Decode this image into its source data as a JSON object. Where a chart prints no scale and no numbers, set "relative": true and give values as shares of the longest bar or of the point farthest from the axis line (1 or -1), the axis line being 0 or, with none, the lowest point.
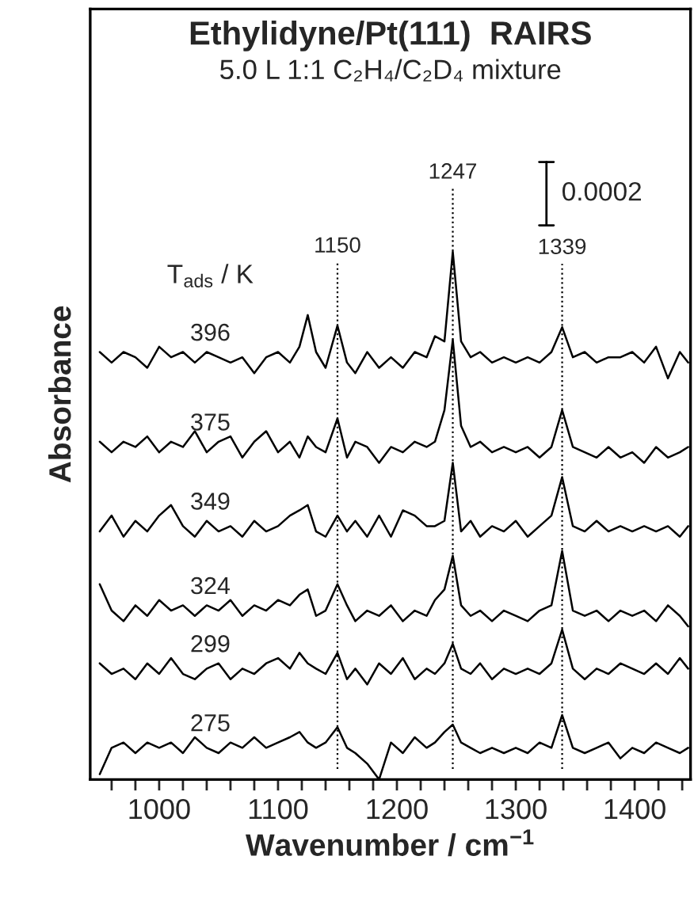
{
  "chart_data": {
    "type": "line",
    "relative": true,
    "title": "Ethylidyne/Pt(111)  RAIRS",
    "subtitle": "5.0 L 1:1 C₂H₄/C₂D₄ mixture",
    "xlabel": "Wavenumber / cm$^{−1}$",
    "ylabel": "Absorbance",
    "legend_title": "T$_{ads}$ / K",
    "annotations": [
      "0.0002"
    ],
    "xlim": [
      942,
      1447
    ],
    "xticks": [
      {
        "value": 960,
        "label": null
      },
      {
        "value": 980,
        "label": null
      },
      1000,
      {
        "value": 1020,
        "label": null
      },
      {
        "value": 1040,
        "label": null
      },
      {
        "value": 1060,
        "label": null
      },
      {
        "value": 1080,
        "label": null
      },
      1100,
      {
        "value": 1120,
        "label": null
      },
      {
        "value": 1140,
        "label": null
      },
      {
        "value": 1160,
        "label": null
      },
      {
        "value": 1180,
        "label": null
      },
      1200,
      {
        "value": 1220,
        "label": null
      },
      {
        "value": 1240,
        "label": null
      },
      {
        "value": 1260,
        "label": null
      },
      {
        "value": 1280,
        "label": null
      },
      1300,
      {
        "value": 1320,
        "label": null
      },
      {
        "value": 1340,
        "label": null
      },
      {
        "value": 1360,
        "label": null
      },
      {
        "value": 1380,
        "label": null
      },
      1400,
      {
        "value": 1420,
        "label": null
      },
      {
        "value": 1440,
        "label": null
      }
    ],
    "tick_labels": "x",
    "grid": false,
    "legend": false,
    "line_style": "solid",
    "marker": "none",
    "ref_lines": [
      {
        "axis": "x",
        "value": 1150,
        "label": "1150",
        "line_style": "dotted"
      },
      {
        "axis": "x",
        "value": 1247,
        "label": "1247",
        "line_style": "dotted"
      },
      {
        "axis": "x",
        "value": 1339,
        "label": "1339",
        "line_style": "dotted"
      }
    ],
    "x": [
      950,
      960,
      970,
      980,
      990,
      1000,
      1010,
      1020,
      1030,
      1040,
      1050,
      1060,
      1070,
      1080,
      1090,
      1100,
      1110,
      1118,
      1125,
      1132,
      1140,
      1150,
      1158,
      1165,
      1175,
      1185,
      1195,
      1205,
      1215,
      1225,
      1232,
      1240,
      1247,
      1254,
      1262,
      1270,
      1280,
      1290,
      1300,
      1310,
      1320,
      1330,
      1339,
      1348,
      1358,
      1368,
      1378,
      1388,
      1398,
      1408,
      1418,
      1428,
      1438,
      1445
    ],
    "series": [
      {
        "name": "396",
        "color": "#000000",
        "values": [
          0.81,
          0.79,
          0.81,
          0.8,
          0.78,
          0.82,
          0.8,
          0.81,
          0.79,
          0.81,
          0.8,
          0.79,
          0.8,
          0.77,
          0.8,
          0.81,
          0.79,
          0.82,
          0.88,
          0.81,
          0.78,
          0.86,
          0.79,
          0.77,
          0.81,
          0.78,
          0.8,
          0.78,
          0.81,
          0.8,
          0.84,
          0.83,
          1.0,
          0.83,
          0.8,
          0.81,
          0.79,
          0.8,
          0.79,
          0.8,
          0.79,
          0.81,
          0.857,
          0.8,
          0.81,
          0.79,
          0.8,
          0.8,
          0.81,
          0.79,
          0.82,
          0.76,
          0.81,
          0.79
        ]
      },
      {
        "name": "375",
        "color": "#000000",
        "values": [
          0.64,
          0.62,
          0.64,
          0.63,
          0.65,
          0.62,
          0.64,
          0.63,
          0.66,
          0.62,
          0.64,
          0.65,
          0.61,
          0.64,
          0.66,
          0.62,
          0.64,
          0.61,
          0.65,
          0.63,
          0.62,
          0.684,
          0.61,
          0.64,
          0.63,
          0.6,
          0.63,
          0.62,
          0.64,
          0.63,
          0.64,
          0.7,
          0.833,
          0.67,
          0.63,
          0.64,
          0.62,
          0.63,
          0.62,
          0.63,
          0.61,
          0.63,
          0.7,
          0.63,
          0.62,
          0.61,
          0.63,
          0.61,
          0.62,
          0.6,
          0.63,
          0.61,
          0.62,
          0.63
        ]
      },
      {
        "name": "349",
        "color": "#000000",
        "values": [
          0.47,
          0.5,
          0.46,
          0.49,
          0.47,
          0.5,
          0.52,
          0.48,
          0.46,
          0.49,
          0.47,
          0.48,
          0.46,
          0.49,
          0.47,
          0.48,
          0.5,
          0.51,
          0.52,
          0.47,
          0.46,
          0.5,
          0.47,
          0.49,
          0.46,
          0.5,
          0.46,
          0.51,
          0.5,
          0.48,
          0.48,
          0.49,
          0.6,
          0.47,
          0.49,
          0.46,
          0.48,
          0.47,
          0.49,
          0.46,
          0.48,
          0.5,
          0.573,
          0.48,
          0.47,
          0.49,
          0.47,
          0.48,
          0.47,
          0.48,
          0.47,
          0.48,
          0.46,
          0.48
        ]
      },
      {
        "name": "324",
        "color": "#000000",
        "values": [
          0.37,
          0.32,
          0.3,
          0.33,
          0.31,
          0.34,
          0.32,
          0.33,
          0.31,
          0.33,
          0.32,
          0.34,
          0.31,
          0.33,
          0.32,
          0.34,
          0.33,
          0.35,
          0.36,
          0.31,
          0.32,
          0.37,
          0.33,
          0.3,
          0.32,
          0.31,
          0.33,
          0.3,
          0.32,
          0.31,
          0.34,
          0.36,
          0.424,
          0.33,
          0.31,
          0.32,
          0.3,
          0.32,
          0.31,
          0.3,
          0.32,
          0.33,
          0.433,
          0.32,
          0.31,
          0.32,
          0.3,
          0.32,
          0.31,
          0.32,
          0.3,
          0.33,
          0.31,
          0.29
        ]
      },
      {
        "name": "299",
        "color": "#000000",
        "values": [
          0.22,
          0.2,
          0.21,
          0.19,
          0.22,
          0.2,
          0.23,
          0.2,
          0.19,
          0.21,
          0.22,
          0.19,
          0.21,
          0.2,
          0.22,
          0.23,
          0.21,
          0.24,
          0.22,
          0.21,
          0.2,
          0.24,
          0.19,
          0.21,
          0.18,
          0.22,
          0.2,
          0.23,
          0.19,
          0.21,
          0.2,
          0.22,
          0.257,
          0.21,
          0.2,
          0.22,
          0.19,
          0.21,
          0.2,
          0.21,
          0.2,
          0.22,
          0.284,
          0.21,
          0.19,
          0.21,
          0.2,
          0.22,
          0.21,
          0.2,
          0.22,
          0.2,
          0.23,
          0.21
        ]
      },
      {
        "name": "275",
        "color": "#000000",
        "values": [
          0.01,
          0.06,
          0.07,
          0.05,
          0.07,
          0.06,
          0.07,
          0.05,
          0.08,
          0.06,
          0.05,
          0.07,
          0.06,
          0.08,
          0.06,
          0.07,
          0.08,
          0.09,
          0.07,
          0.06,
          0.07,
          0.099,
          0.06,
          0.05,
          0.03,
          0.0,
          0.07,
          0.05,
          0.08,
          0.06,
          0.07,
          0.09,
          0.104,
          0.07,
          0.06,
          0.05,
          0.06,
          0.05,
          0.06,
          0.05,
          0.07,
          0.06,
          0.122,
          0.06,
          0.05,
          0.06,
          0.07,
          0.04,
          0.06,
          0.05,
          0.07,
          0.06,
          0.05,
          0.06
        ]
      }
    ]
  }
}
